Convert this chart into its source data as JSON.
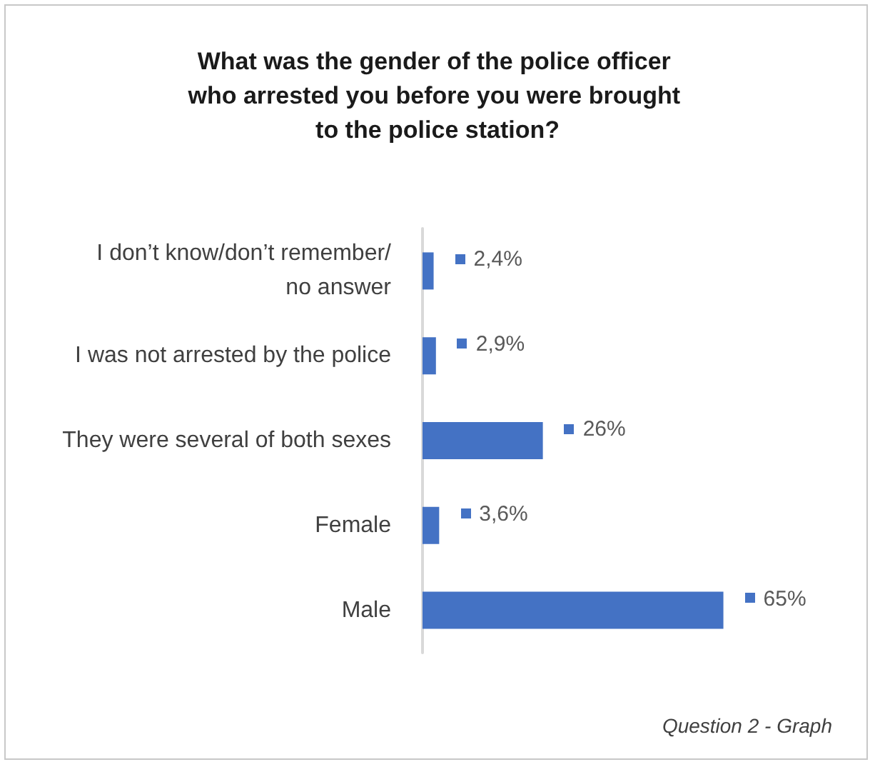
{
  "chart_data": {
    "type": "bar",
    "orientation": "horizontal",
    "title": "What was the gender of the police officer who arrested you before you were brought to the police station?",
    "categories": [
      "I don’t know/don’t remember/no answer",
      "I was not arrested by the police",
      "They were several of both sexes",
      "Female",
      "Male"
    ],
    "values": [
      2.4,
      2.9,
      26,
      3.6,
      65
    ],
    "value_labels": [
      "2,4%",
      "2,9%",
      "26%",
      "3,6%",
      "65%"
    ],
    "color": "#4472c4",
    "annotations": [
      "Question 2 - Graph"
    ]
  }
}
